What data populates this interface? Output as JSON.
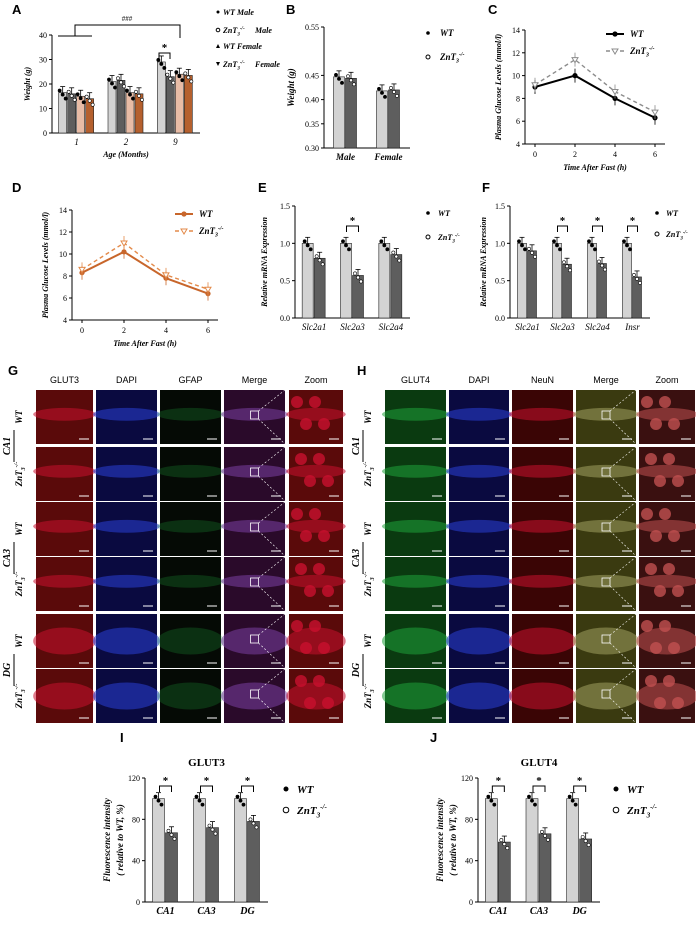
{
  "colors": {
    "wt": "#d3d3d3",
    "ko": "#5e5e5e",
    "wt_f": "#e8bca6",
    "ko_f": "#b5602e",
    "line_wt": "#000000",
    "line_ko": "#8c8c8c",
    "orange": "#c8662b",
    "orange_d": "#e38a4a",
    "red": "#c8102e",
    "green": "#1fa33a",
    "blue": "#2a3fd6"
  },
  "chart_data": [
    {
      "id": "A",
      "panel": "A",
      "type": "bar",
      "categories": [
        "1",
        "2",
        "9"
      ],
      "xlabel": "Age (Months)",
      "ylabel": "Weight (g)",
      "ylim": [
        0,
        40
      ],
      "yticks": [
        "0",
        "10",
        "20",
        "30",
        "40"
      ],
      "series": [
        {
          "name": "WT Male",
          "values": [
            16.5,
            21,
            29
          ]
        },
        {
          "name": "ZnT3-/-Male",
          "values": [
            16,
            21.5,
            23
          ]
        },
        {
          "name": "WT Female",
          "values": [
            15,
            16.5,
            24
          ]
        },
        {
          "name": "ZnT3-/-Female",
          "values": [
            14,
            16,
            23.5
          ]
        }
      ],
      "annotations": [
        "###",
        "*"
      ]
    },
    {
      "id": "B",
      "panel": "B",
      "type": "bar",
      "categories": [
        "Male",
        "Female"
      ],
      "ylabel": "Weight  (g)",
      "ylim": [
        0.3,
        0.55
      ],
      "yticks": [
        "0.30",
        "0.35",
        "0.40",
        "0.45",
        "0.55"
      ],
      "series": [
        {
          "name": "WT",
          "values": [
            0.447,
            0.418
          ]
        },
        {
          "name": "ZnT3-/-",
          "values": [
            0.444,
            0.42
          ]
        }
      ]
    },
    {
      "id": "C",
      "panel": "C",
      "type": "line",
      "x": [
        0,
        2,
        4,
        6
      ],
      "xlabel": "Time After Fast (h)",
      "ylabel": "Plasma Glucose Levels (mmol/l)",
      "ylim": [
        4,
        14
      ],
      "yticks": [
        "4",
        "6",
        "8",
        "10",
        "12",
        "14"
      ],
      "xticks": [
        "0",
        "2",
        "4",
        "6"
      ],
      "series": [
        {
          "name": "WT",
          "values": [
            9.0,
            10.0,
            8.0,
            6.3
          ]
        },
        {
          "name": "ZnT3-/-",
          "values": [
            9.2,
            11.4,
            8.6,
            6.8
          ]
        }
      ]
    },
    {
      "id": "D",
      "panel": "D",
      "type": "line",
      "x": [
        0,
        2,
        4,
        6
      ],
      "xlabel": "Time After Fast (h)",
      "ylabel": "Plasma Glucose Levels (mmol/l)",
      "ylim": [
        4,
        14
      ],
      "yticks": [
        "4",
        "6",
        "8",
        "10",
        "12",
        "14"
      ],
      "xticks": [
        "0",
        "2",
        "4",
        "6"
      ],
      "series": [
        {
          "name": "WT",
          "values": [
            8.3,
            10.2,
            7.8,
            6.4
          ]
        },
        {
          "name": "ZnT3-/-",
          "values": [
            8.6,
            11.0,
            8.1,
            6.8
          ]
        }
      ]
    },
    {
      "id": "E",
      "panel": "E",
      "type": "bar",
      "categories": [
        "Slc2a1",
        "Slc2a3",
        "Slc2a4"
      ],
      "ylabel": "Relative mRNA Expression",
      "ylim": [
        0,
        1.5
      ],
      "yticks": [
        "0.0",
        "0.5",
        "1.0",
        "1.5"
      ],
      "series": [
        {
          "name": "WT",
          "values": [
            1.0,
            1.0,
            1.0
          ]
        },
        {
          "name": "ZnT3-/-",
          "values": [
            0.8,
            0.57,
            0.85
          ]
        }
      ],
      "annotations": [
        "*"
      ]
    },
    {
      "id": "F",
      "panel": "F",
      "type": "bar",
      "categories": [
        "Slc2a1",
        "Slc2a3",
        "Slc2a4",
        "Insr"
      ],
      "ylabel": "Relative mRNA Expression",
      "ylim": [
        0,
        1.5
      ],
      "yticks": [
        "0.0",
        "0.5",
        "1.0",
        "1.5"
      ],
      "series": [
        {
          "name": "WT",
          "values": [
            1.0,
            1.0,
            1.0,
            1.0
          ]
        },
        {
          "name": "ZnT3-/-",
          "values": [
            0.9,
            0.72,
            0.73,
            0.55
          ]
        }
      ],
      "annotations": [
        "*",
        "*",
        "*"
      ]
    },
    {
      "id": "I",
      "panel": "I",
      "type": "bar",
      "title": "GLUT3",
      "categories": [
        "CA1",
        "CA3",
        "DG"
      ],
      "ylabel": "Fluorescence intensity",
      "ylabel2": "( relative to WT, %)",
      "ylim": [
        0,
        120
      ],
      "yticks": [
        "0",
        "40",
        "80",
        "120"
      ],
      "series": [
        {
          "name": "WT",
          "values": [
            100,
            100,
            100
          ]
        },
        {
          "name": "ZnT3-/-",
          "values": [
            67,
            72,
            78
          ]
        }
      ],
      "annotations": [
        "*",
        "*",
        "*"
      ]
    },
    {
      "id": "J",
      "panel": "J",
      "type": "bar",
      "title": "GLUT4",
      "categories": [
        "CA1",
        "CA3",
        "DG"
      ],
      "ylabel": "Fluorescence intensity",
      "ylabel2": "( relative to WT, %)",
      "ylim": [
        0,
        120
      ],
      "yticks": [
        "0",
        "40",
        "80",
        "120"
      ],
      "series": [
        {
          "name": "WT",
          "values": [
            100,
            100,
            100
          ]
        },
        {
          "name": "ZnT3-/-",
          "values": [
            58,
            66,
            61
          ]
        }
      ],
      "annotations": [
        "*",
        "*",
        "*"
      ]
    }
  ],
  "legend": {
    "wt": "WT",
    "ko": "ZnT",
    "ko_sup": "-/-",
    "ko_sub": "3",
    "male": " Male",
    "female": " Female",
    "ko_male": "Male"
  },
  "micro": {
    "G": {
      "panel": "G",
      "cols": [
        "GLUT3",
        "DAPI",
        "GFAP",
        "Merge",
        "Zoom"
      ],
      "regions": [
        "CA1",
        "CA3",
        "DG"
      ],
      "genotypes": [
        "WT",
        "ZnT",
        "-/-",
        "3"
      ]
    },
    "H": {
      "panel": "H",
      "cols": [
        "GLUT4",
        "DAPI",
        "NeuN",
        "Merge",
        "Zoom"
      ],
      "regions": [
        "CA1",
        "CA3",
        "DG"
      ],
      "genotypes": [
        "WT",
        "ZnT",
        "-/-",
        "3"
      ]
    }
  }
}
